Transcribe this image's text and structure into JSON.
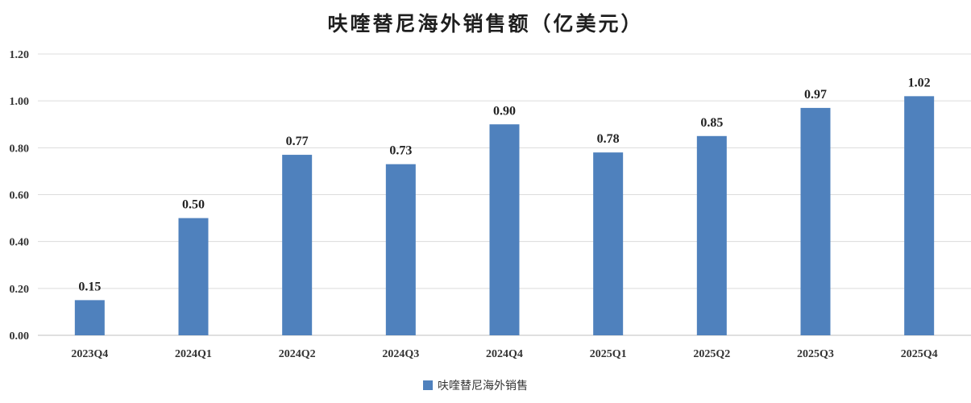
{
  "chart_data": {
    "type": "bar",
    "title": "呋喹替尼海外销售额（亿美元）",
    "categories": [
      "2023Q4",
      "2024Q1",
      "2024Q2",
      "2024Q3",
      "2024Q4",
      "2025Q1",
      "2025Q2",
      "2025Q3",
      "2025Q4"
    ],
    "series": [
      {
        "name": "呋喹替尼海外销售",
        "values": [
          0.15,
          0.5,
          0.77,
          0.73,
          0.9,
          0.78,
          0.85,
          0.97,
          1.02
        ],
        "color": "#4F81BD"
      }
    ],
    "data_labels": [
      "0.15",
      "0.50",
      "0.77",
      "0.73",
      "0.90",
      "0.78",
      "0.85",
      "0.97",
      "1.02"
    ],
    "yticks": [
      "0.00",
      "0.20",
      "0.40",
      "0.60",
      "0.80",
      "1.00",
      "1.20"
    ],
    "ylim": [
      0,
      1.2
    ],
    "grid": true,
    "legend_position": "bottom"
  }
}
